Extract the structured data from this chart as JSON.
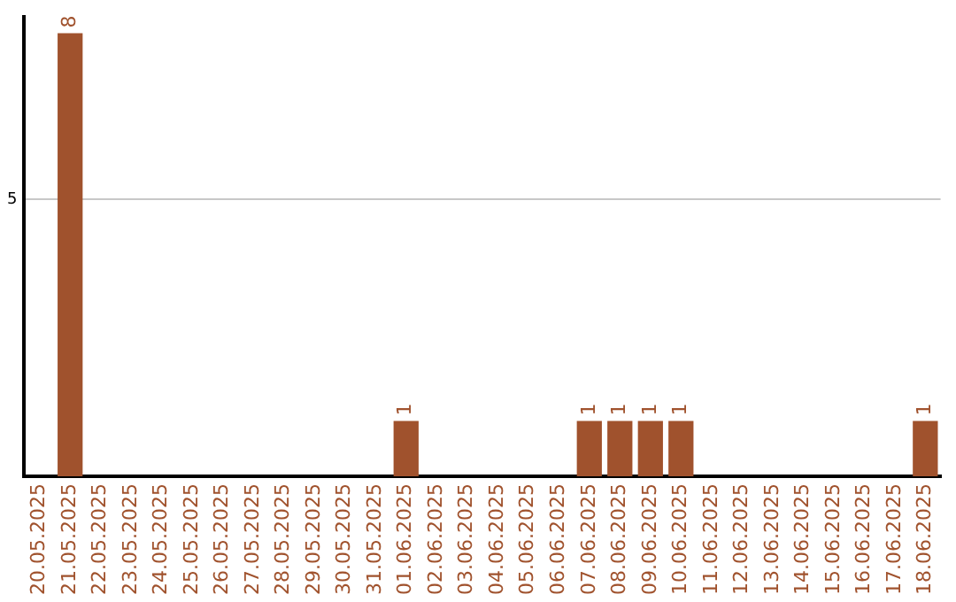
{
  "chart_data": {
    "type": "bar",
    "categories": [
      "20.05.2025",
      "21.05.2025",
      "22.05.2025",
      "23.05.2025",
      "24.05.2025",
      "25.05.2025",
      "26.05.2025",
      "27.05.2025",
      "28.05.2025",
      "29.05.2025",
      "30.05.2025",
      "31.05.2025",
      "01.06.2025",
      "02.06.2025",
      "03.06.2025",
      "04.06.2025",
      "05.06.2025",
      "06.06.2025",
      "07.06.2025",
      "08.06.2025",
      "09.06.2025",
      "10.06.2025",
      "11.06.2025",
      "12.06.2025",
      "13.06.2025",
      "14.06.2025",
      "15.06.2025",
      "16.06.2025",
      "17.06.2025",
      "18.06.2025"
    ],
    "values": [
      0,
      8,
      0,
      0,
      0,
      0,
      0,
      0,
      0,
      0,
      0,
      0,
      1,
      0,
      0,
      0,
      0,
      0,
      1,
      1,
      1,
      1,
      0,
      0,
      0,
      0,
      0,
      0,
      0,
      1
    ],
    "value_labels": [
      null,
      "8",
      null,
      null,
      null,
      null,
      null,
      null,
      null,
      null,
      null,
      null,
      "1",
      null,
      null,
      null,
      null,
      null,
      "1",
      "1",
      "1",
      "1",
      null,
      null,
      null,
      null,
      null,
      null,
      null,
      "1"
    ],
    "color": "#a0522d",
    "ylim": [
      0,
      8.3
    ],
    "yticks": [
      5
    ],
    "grid": "y",
    "legend": false
  }
}
